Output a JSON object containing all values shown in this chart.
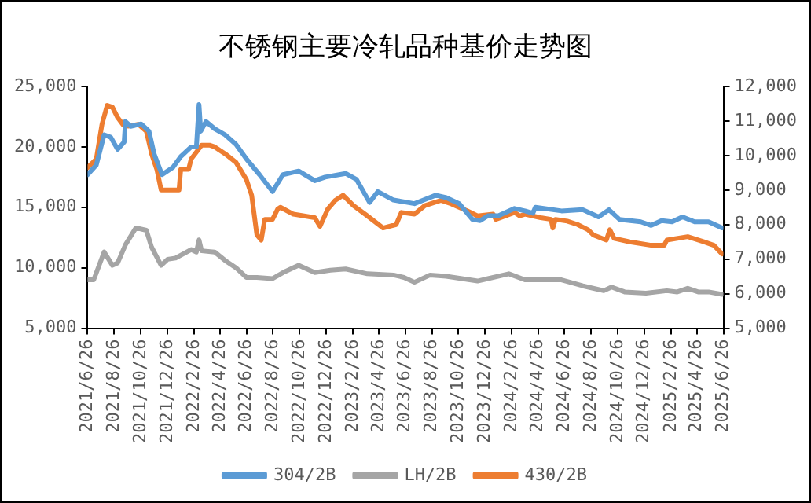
{
  "chart_data": {
    "type": "line",
    "title": "不锈钢主要冷轧品种基价走势图",
    "xlim": [
      "2021-06-26",
      "2025-06-26"
    ],
    "xticks": [
      {
        "value": "2021-06-26",
        "label": "2021/6/26"
      },
      {
        "value": "2021-08-26",
        "label": "2021/8/26"
      },
      {
        "value": "2021-10-26",
        "label": "2021/10/26"
      },
      {
        "value": "2021-12-26",
        "label": "2021/12/26"
      },
      {
        "value": "2022-02-26",
        "label": "2022/2/26"
      },
      {
        "value": "2022-04-26",
        "label": "2022/4/26"
      },
      {
        "value": "2022-06-26",
        "label": "2022/6/26"
      },
      {
        "value": "2022-08-26",
        "label": "2022/8/26"
      },
      {
        "value": "2022-10-26",
        "label": "2022/10/26"
      },
      {
        "value": "2022-12-26",
        "label": "2022/12/26"
      },
      {
        "value": "2023-02-26",
        "label": "2023/2/26"
      },
      {
        "value": "2023-04-26",
        "label": "2023/4/26"
      },
      {
        "value": "2023-06-26",
        "label": "2023/6/26"
      },
      {
        "value": "2023-08-26",
        "label": "2023/8/26"
      },
      {
        "value": "2023-10-26",
        "label": "2023/10/26"
      },
      {
        "value": "2023-12-26",
        "label": "2023/12/26"
      },
      {
        "value": "2024-02-26",
        "label": "2024/2/26"
      },
      {
        "value": "2024-04-26",
        "label": "2024/4/26"
      },
      {
        "value": "2024-06-26",
        "label": "2024/6/26"
      },
      {
        "value": "2024-08-26",
        "label": "2024/8/26"
      },
      {
        "value": "2024-10-26",
        "label": "2024/10/26"
      },
      {
        "value": "2024-12-26",
        "label": "2024/12/26"
      },
      {
        "value": "2025-02-26",
        "label": "2025/2/26"
      },
      {
        "value": "2025-04-26",
        "label": "2025/4/26"
      },
      {
        "value": "2025-06-26",
        "label": "2025/6/26"
      }
    ],
    "ylim": [
      5000,
      25000
    ],
    "yticks": [
      {
        "value": 5000,
        "label": "5,000"
      },
      {
        "value": 10000,
        "label": "10,000"
      },
      {
        "value": 15000,
        "label": "15,000"
      },
      {
        "value": 20000,
        "label": "20,000"
      },
      {
        "value": 25000,
        "label": "25,000"
      }
    ],
    "y2lim": [
      5000,
      12000
    ],
    "y2ticks": [
      {
        "value": 5000,
        "label": "5,000"
      },
      {
        "value": 6000,
        "label": "6,000"
      },
      {
        "value": 7000,
        "label": "7,000"
      },
      {
        "value": 8000,
        "label": "8,000"
      },
      {
        "value": 9000,
        "label": "9,000"
      },
      {
        "value": 10000,
        "label": "10,000"
      },
      {
        "value": 11000,
        "label": "11,000"
      },
      {
        "value": 12000,
        "label": "12,000"
      }
    ],
    "grid": false,
    "legend": "bottom",
    "marker": "none",
    "line_style": "solid",
    "series": [
      {
        "name": "304/2B",
        "color": "#5b9bd5",
        "x": [
          "2021-06-26",
          "2021-07-16",
          "2021-08-03",
          "2021-08-18",
          "2021-09-03",
          "2021-09-18",
          "2021-09-21",
          "2021-10-03",
          "2021-10-27",
          "2021-11-14",
          "2021-11-26",
          "2021-12-14",
          "2022-01-08",
          "2022-01-26",
          "2022-02-19",
          "2022-03-03",
          "2022-03-09",
          "2022-03-13",
          "2022-03-25",
          "2022-04-14",
          "2022-05-08",
          "2022-06-02",
          "2022-06-26",
          "2022-07-26",
          "2022-08-25",
          "2022-09-18",
          "2022-10-24",
          "2022-11-30",
          "2022-12-24",
          "2023-02-09",
          "2023-03-06",
          "2023-04-05",
          "2023-04-24",
          "2023-05-30",
          "2023-07-17",
          "2023-09-04",
          "2023-09-28",
          "2023-10-28",
          "2023-11-27",
          "2023-12-15",
          "2024-01-02",
          "2024-01-26",
          "2024-03-03",
          "2024-03-27",
          "2024-04-14",
          "2024-04-20",
          "2024-06-19",
          "2024-08-07",
          "2024-09-12",
          "2024-10-06",
          "2024-10-30",
          "2024-12-18",
          "2025-01-11",
          "2025-02-04",
          "2025-02-28",
          "2025-03-24",
          "2025-04-21",
          "2025-05-23",
          "2025-06-23"
        ],
        "values": [
          17700,
          18500,
          21000,
          20800,
          19800,
          20400,
          22100,
          21700,
          21900,
          21300,
          19400,
          17700,
          18300,
          19200,
          20000,
          20000,
          23500,
          21300,
          22100,
          21500,
          21000,
          20200,
          19000,
          17700,
          16300,
          17700,
          18000,
          17200,
          17500,
          17800,
          17300,
          15400,
          16300,
          15600,
          15300,
          16000,
          15800,
          15300,
          14000,
          13900,
          14300,
          14300,
          14900,
          14700,
          14500,
          15000,
          14700,
          14800,
          14200,
          14800,
          14000,
          13800,
          13500,
          13900,
          13800,
          14200,
          13800,
          13800,
          13300
        ]
      },
      {
        "name": "LH/2B",
        "color": "#a5a5a5",
        "x": [
          "2021-06-26",
          "2021-07-10",
          "2021-08-03",
          "2021-08-22",
          "2021-09-03",
          "2021-09-21",
          "2021-10-15",
          "2021-11-08",
          "2021-11-20",
          "2021-12-12",
          "2021-12-27",
          "2022-01-14",
          "2022-02-19",
          "2022-03-03",
          "2022-03-09",
          "2022-03-15",
          "2022-04-14",
          "2022-05-08",
          "2022-06-02",
          "2022-06-26",
          "2022-07-20",
          "2022-08-25",
          "2022-09-18",
          "2022-10-24",
          "2022-11-30",
          "2023-01-05",
          "2023-02-09",
          "2023-03-31",
          "2023-05-30",
          "2023-06-23",
          "2023-07-17",
          "2023-08-22",
          "2023-09-28",
          "2023-11-03",
          "2023-12-09",
          "2024-01-02",
          "2024-02-19",
          "2024-03-27",
          "2024-05-02",
          "2024-06-19",
          "2024-08-07",
          "2024-09-24",
          "2024-10-12",
          "2024-11-11",
          "2024-12-30",
          "2025-02-16",
          "2025-03-12",
          "2025-04-05",
          "2025-04-29",
          "2025-05-23",
          "2025-06-23"
        ],
        "values": [
          9000,
          9000,
          11300,
          10200,
          10400,
          11900,
          13300,
          13100,
          11700,
          10200,
          10700,
          10800,
          11500,
          11300,
          12300,
          11400,
          11300,
          10600,
          10000,
          9200,
          9200,
          9100,
          9600,
          10200,
          9600,
          9800,
          9900,
          9500,
          9400,
          9200,
          8800,
          9400,
          9300,
          9100,
          8900,
          9100,
          9500,
          9000,
          9000,
          9000,
          8500,
          8100,
          8400,
          8000,
          7900,
          8100,
          8000,
          8300,
          8000,
          8000,
          7800
        ]
      },
      {
        "name": "430/2B",
        "color": "#ed7d31",
        "axis": "y2",
        "x": [
          "2021-06-26",
          "2021-07-16",
          "2021-07-29",
          "2021-08-10",
          "2021-08-22",
          "2021-09-03",
          "2021-09-15",
          "2021-09-27",
          "2021-10-21",
          "2021-11-08",
          "2021-11-20",
          "2021-12-02",
          "2021-12-12",
          "2022-01-22",
          "2022-01-26",
          "2022-02-13",
          "2022-02-19",
          "2022-03-15",
          "2022-04-02",
          "2022-04-14",
          "2022-05-08",
          "2022-06-02",
          "2022-06-26",
          "2022-07-08",
          "2022-07-20",
          "2022-07-30",
          "2022-08-07",
          "2022-08-25",
          "2022-09-06",
          "2022-09-12",
          "2022-10-12",
          "2022-11-30",
          "2022-12-12",
          "2022-12-30",
          "2023-01-16",
          "2023-02-03",
          "2023-02-27",
          "2023-03-31",
          "2023-05-06",
          "2023-06-05",
          "2023-06-17",
          "2023-07-17",
          "2023-08-10",
          "2023-09-16",
          "2023-10-10",
          "2023-11-15",
          "2023-12-09",
          "2024-01-14",
          "2024-01-20",
          "2024-03-03",
          "2024-03-15",
          "2024-03-27",
          "2024-05-02",
          "2024-05-26",
          "2024-05-30",
          "2024-06-05",
          "2024-07-02",
          "2024-07-26",
          "2024-08-19",
          "2024-08-31",
          "2024-09-30",
          "2024-10-08",
          "2024-10-18",
          "2024-11-23",
          "2025-01-11",
          "2025-02-10",
          "2025-02-16",
          "2025-04-05",
          "2025-05-12",
          "2025-06-04",
          "2025-06-23"
        ],
        "values": [
          9650,
          9900,
          10900,
          11450,
          11400,
          11100,
          10900,
          10850,
          10900,
          10700,
          10050,
          9600,
          9000,
          9000,
          9600,
          9600,
          9900,
          10300,
          10300,
          10250,
          10050,
          9800,
          9300,
          8850,
          7700,
          7550,
          8150,
          8150,
          8450,
          8500,
          8300,
          8200,
          7950,
          8450,
          8700,
          8850,
          8550,
          8250,
          7900,
          8000,
          8350,
          8300,
          8550,
          8700,
          8600,
          8400,
          8250,
          8300,
          8150,
          8350,
          8250,
          8300,
          8200,
          8150,
          7900,
          8150,
          8100,
          8000,
          7850,
          7700,
          7550,
          7850,
          7600,
          7500,
          7400,
          7400,
          7550,
          7650,
          7500,
          7400,
          7150
        ]
      }
    ]
  }
}
